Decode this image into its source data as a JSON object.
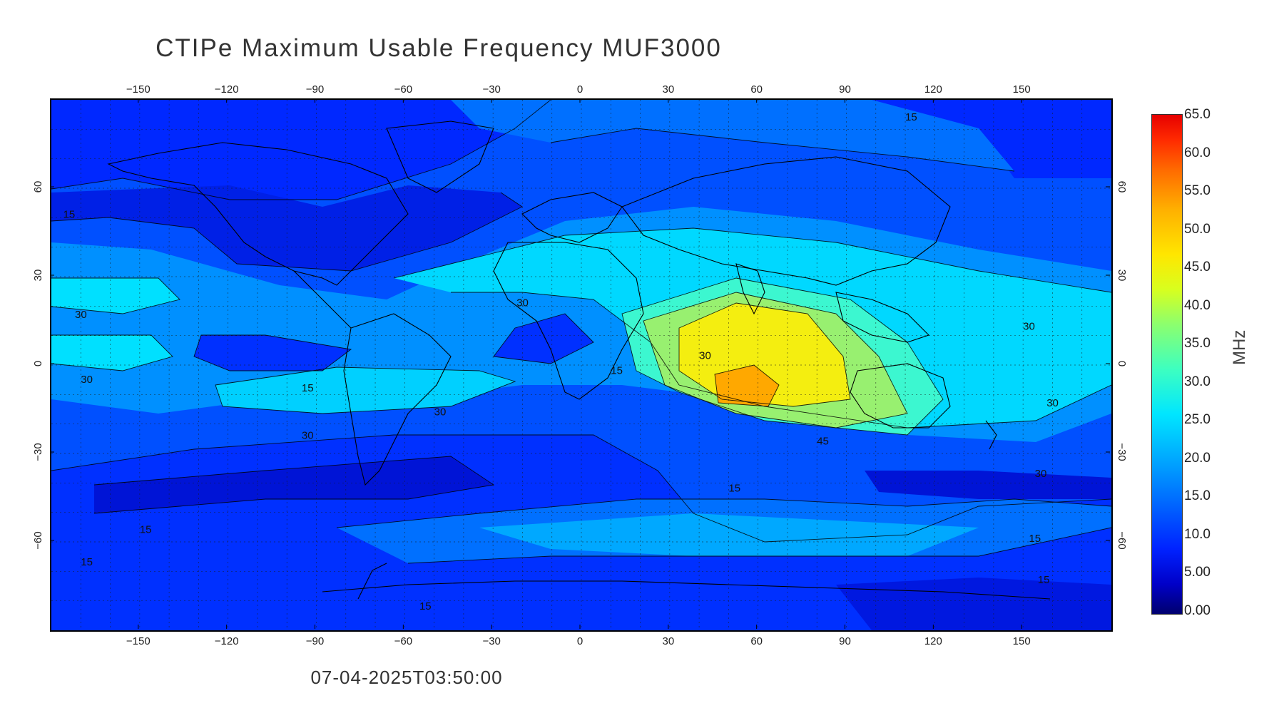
{
  "title": "CTIPe Maximum Usable Frequency MUF3000",
  "timestamp": "07-04-2025T03:50:00",
  "colorbar": {
    "unit": "MHz",
    "ticks": [
      "65.0",
      "60.0",
      "55.0",
      "50.0",
      "45.0",
      "40.0",
      "35.0",
      "30.0",
      "25.0",
      "20.0",
      "15.0",
      "10.0",
      "5.00",
      "0.00"
    ],
    "min": 0,
    "max": 65
  },
  "axes": {
    "lon_ticks": [
      "-150",
      "-120",
      "-90",
      "-60",
      "-30",
      "0",
      "30",
      "60",
      "90",
      "120",
      "150"
    ],
    "lat_ticks": [
      "60",
      "30",
      "0",
      "-30",
      "-60"
    ],
    "lon_range": [
      -180,
      180
    ],
    "lat_range": [
      -90,
      90
    ]
  },
  "contour_labels": [
    {
      "text": "15",
      "lon": -176,
      "lat": 50
    },
    {
      "text": "30",
      "lon": -172,
      "lat": 16
    },
    {
      "text": "30",
      "lon": -170,
      "lat": -6
    },
    {
      "text": "15",
      "lon": -95,
      "lat": -9
    },
    {
      "text": "30",
      "lon": -95,
      "lat": -25
    },
    {
      "text": "30",
      "lon": -50,
      "lat": -17
    },
    {
      "text": "15",
      "lon": -150,
      "lat": -57
    },
    {
      "text": "15",
      "lon": -170,
      "lat": -68
    },
    {
      "text": "15",
      "lon": -55,
      "lat": -83
    },
    {
      "text": "15",
      "lon": 10,
      "lat": -3
    },
    {
      "text": "30",
      "lon": 40,
      "lat": 2
    },
    {
      "text": "30",
      "lon": -22,
      "lat": 20
    },
    {
      "text": "45",
      "lon": 80,
      "lat": -27
    },
    {
      "text": "15",
      "lon": 50,
      "lat": -43
    },
    {
      "text": "30",
      "lon": 150,
      "lat": 12
    },
    {
      "text": "30",
      "lon": 158,
      "lat": -14
    },
    {
      "text": "30",
      "lon": 154,
      "lat": -38
    },
    {
      "text": "15",
      "lon": 152,
      "lat": -60
    },
    {
      "text": "15",
      "lon": 155,
      "lat": -74
    },
    {
      "text": "15",
      "lon": 110,
      "lat": 83
    }
  ],
  "colors": {
    "deep": "#0000d6",
    "dark": "#0030ff",
    "mid": "#0070ff",
    "light": "#00a8ff",
    "cyan": "#00e0ff",
    "teal": "#3cf7d0",
    "green": "#98f070",
    "yellow": "#f4ee10",
    "orange": "#ffb000"
  }
}
